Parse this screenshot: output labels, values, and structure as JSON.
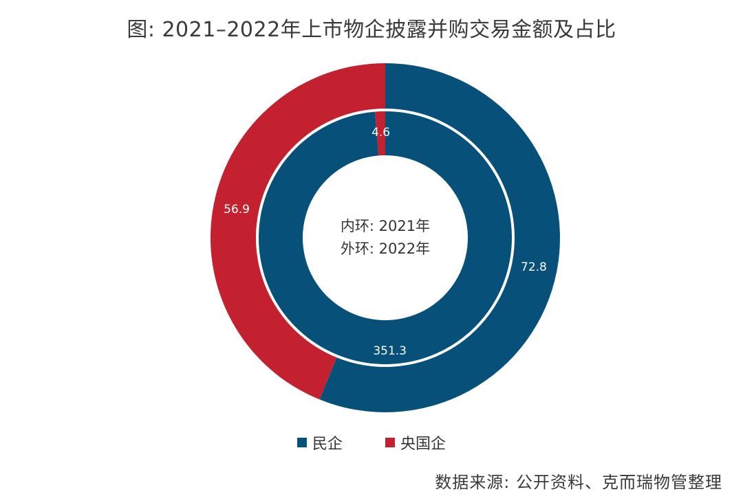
{
  "title": "图: 2021–2022年上市物企披露并购交易金额及占比",
  "source_note": "数据来源: 公开资料、克而瑞物管整理",
  "center_text": {
    "line1": "内环: 2021年",
    "line2": "外环: 2022年"
  },
  "legend": [
    {
      "label": "民企",
      "color": "#07507A"
    },
    {
      "label": "央国企",
      "color": "#C42130"
    }
  ],
  "chart_data": {
    "type": "pie",
    "variant": "donut",
    "title": "图: 2021–2022年上市物企披露并购交易金额及占比",
    "categories": [
      "民企",
      "央国企"
    ],
    "colors": [
      "#07507A",
      "#C42130"
    ],
    "rings": [
      {
        "name": "2021年",
        "position": "inner",
        "values": [
          351.3,
          4.6
        ],
        "labels": [
          "351.3",
          "4.6"
        ]
      },
      {
        "name": "2022年",
        "position": "outer",
        "values": [
          72.8,
          56.9
        ],
        "labels": [
          "72.8",
          "56.9"
        ]
      }
    ],
    "legend_position": "bottom"
  }
}
